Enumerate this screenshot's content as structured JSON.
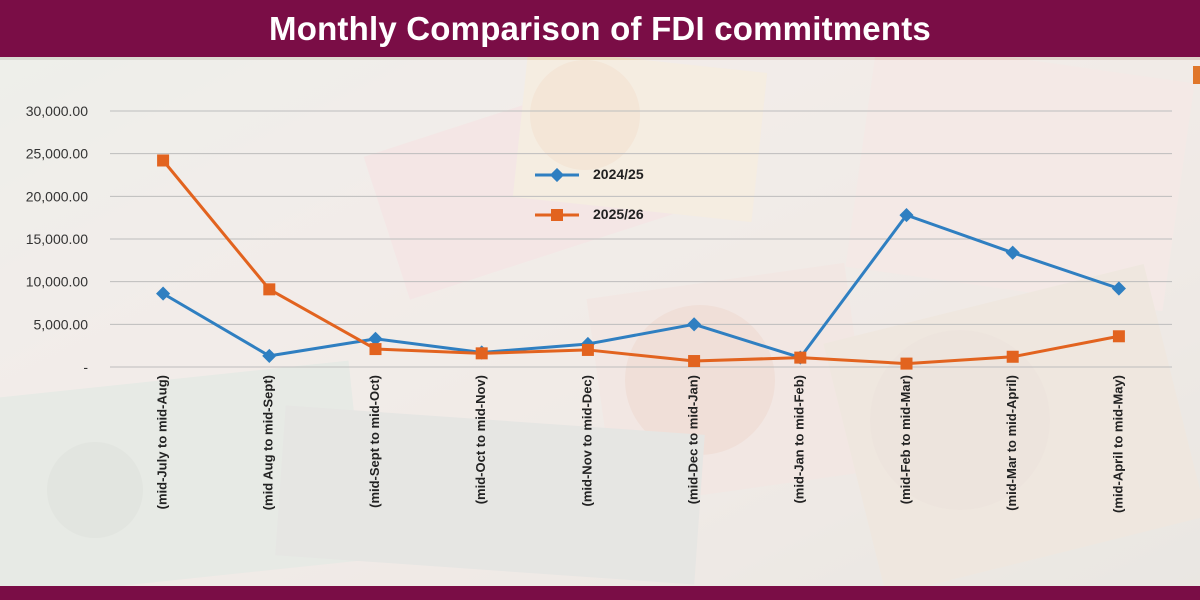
{
  "header": {
    "title": "Monthly Comparison of FDI commitments"
  },
  "colors": {
    "brand": "#7a0d46",
    "series_2024_25": "#2f7fc1",
    "series_2025_26": "#e2631f"
  },
  "chart_data": {
    "type": "line",
    "title": "Monthly Comparison of FDI commitments",
    "xlabel": "",
    "ylabel": "",
    "categories": [
      "(mid-July to mid-Aug)",
      "(mid Aug to mid-Sept)",
      "(mid-Sept to mid-Oct)",
      "(mid-Oct to mid-Nov)",
      "(mid-Nov to mid-Dec)",
      "(mid-Dec to mid-Jan)",
      "(mid-Jan to mid-Feb)",
      "(mid-Feb to mid-Mar)",
      "(mid-Mar to mid-April)",
      "(mid-April to mid-May)"
    ],
    "series": [
      {
        "name": "2024/25",
        "marker": "diamond",
        "values": [
          8600,
          1300,
          3300,
          1700,
          2700,
          5000,
          1100,
          17800,
          13400,
          9200
        ]
      },
      {
        "name": "2025/26",
        "marker": "square",
        "values": [
          24200,
          9100,
          2100,
          1600,
          2000,
          700,
          1100,
          400,
          1200,
          3600
        ]
      }
    ],
    "ylim": [
      0,
      30000
    ],
    "yticks": [
      0,
      5000,
      10000,
      15000,
      20000,
      25000,
      30000
    ],
    "ytick_labels": [
      "-",
      "5,000.00",
      "10,000.00",
      "15,000.00",
      "20,000.00",
      "25,000.00",
      "30,000.00"
    ],
    "grid": true,
    "legend_position": "center-top"
  }
}
